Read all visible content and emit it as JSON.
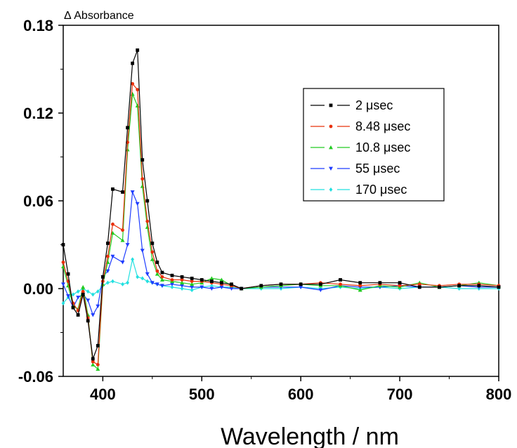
{
  "chart_data": {
    "type": "line",
    "xlabel": "Wavelength / nm",
    "ylabel": "Δ Absorbance",
    "xlim": [
      360,
      800
    ],
    "ylim": [
      -0.06,
      0.18
    ],
    "xticks": [
      400,
      500,
      600,
      700,
      800
    ],
    "xtick_labels": [
      "400",
      "500",
      "600",
      "700",
      "800"
    ],
    "yticks": [
      -0.06,
      0.0,
      0.06,
      0.12,
      0.18
    ],
    "ytick_labels": [
      "-0.06",
      "0.00",
      "0.06",
      "0.12",
      "0.18"
    ],
    "grid": false,
    "legend_position": "top-right",
    "series": [
      {
        "name": "2 μsec",
        "color": "#000000",
        "marker": "square",
        "x": [
          360,
          365,
          370,
          375,
          380,
          385,
          390,
          395,
          400,
          405,
          410,
          420,
          425,
          430,
          435,
          440,
          445,
          450,
          455,
          460,
          470,
          480,
          490,
          500,
          510,
          520,
          530,
          540,
          560,
          580,
          600,
          620,
          640,
          660,
          680,
          700,
          720,
          740,
          760,
          780,
          800
        ],
        "y": [
          0.03,
          0.01,
          -0.013,
          -0.018,
          -0.004,
          -0.022,
          -0.048,
          -0.039,
          0.008,
          0.031,
          0.068,
          0.066,
          0.11,
          0.154,
          0.163,
          0.088,
          0.06,
          0.031,
          0.018,
          0.011,
          0.009,
          0.008,
          0.007,
          0.006,
          0.005,
          0.004,
          0.003,
          0.0,
          0.002,
          0.003,
          0.003,
          0.003,
          0.006,
          0.004,
          0.004,
          0.004,
          0.001,
          0.001,
          0.002,
          0.002,
          0.001
        ]
      },
      {
        "name": "8.48 μsec",
        "color": "#e8300a",
        "marker": "circle",
        "x": [
          360,
          365,
          370,
          375,
          380,
          385,
          390,
          395,
          400,
          405,
          410,
          420,
          425,
          430,
          435,
          440,
          445,
          450,
          455,
          460,
          470,
          480,
          490,
          500,
          510,
          520,
          530,
          540,
          560,
          580,
          600,
          620,
          640,
          660,
          680,
          700,
          720,
          740,
          760,
          780,
          800
        ],
        "y": [
          0.018,
          0.005,
          -0.01,
          -0.015,
          -0.002,
          -0.02,
          -0.05,
          -0.052,
          0.005,
          0.022,
          0.044,
          0.04,
          0.1,
          0.14,
          0.136,
          0.075,
          0.046,
          0.025,
          0.012,
          0.008,
          0.006,
          0.006,
          0.005,
          0.005,
          0.004,
          0.003,
          0.002,
          0.0,
          0.002,
          0.003,
          0.003,
          0.004,
          0.003,
          0.002,
          0.003,
          0.002,
          0.003,
          0.002,
          0.003,
          0.003,
          0.002
        ]
      },
      {
        "name": "10.8 μsec",
        "color": "#22cc22",
        "marker": "triangle-up",
        "x": [
          360,
          365,
          370,
          375,
          380,
          385,
          390,
          395,
          400,
          405,
          410,
          420,
          425,
          430,
          435,
          440,
          445,
          450,
          455,
          460,
          470,
          480,
          490,
          500,
          510,
          520,
          530,
          540,
          560,
          580,
          600,
          620,
          640,
          660,
          680,
          700,
          720,
          740,
          760,
          780,
          800
        ],
        "y": [
          0.015,
          0.002,
          -0.012,
          -0.014,
          0.001,
          -0.018,
          -0.052,
          -0.055,
          0.003,
          0.018,
          0.038,
          0.033,
          0.095,
          0.133,
          0.125,
          0.07,
          0.042,
          0.02,
          0.01,
          0.006,
          0.005,
          0.004,
          0.003,
          0.004,
          0.007,
          0.006,
          0.002,
          0.0,
          0.001,
          0.002,
          0.003,
          0.002,
          0.002,
          -0.001,
          0.002,
          0.001,
          0.004,
          0.001,
          0.002,
          0.004,
          0.002
        ]
      },
      {
        "name": "55 μsec",
        "color": "#1e3cff",
        "marker": "triangle-down",
        "x": [
          360,
          365,
          370,
          375,
          380,
          385,
          390,
          395,
          400,
          405,
          410,
          420,
          425,
          430,
          435,
          440,
          445,
          450,
          455,
          460,
          470,
          480,
          490,
          500,
          510,
          520,
          530,
          540,
          560,
          580,
          600,
          620,
          640,
          660,
          680,
          700,
          720,
          740,
          760,
          780,
          800
        ],
        "y": [
          0.003,
          -0.005,
          -0.013,
          -0.006,
          -0.004,
          -0.008,
          -0.018,
          -0.012,
          0.008,
          0.012,
          0.022,
          0.018,
          0.03,
          0.066,
          0.058,
          0.026,
          0.01,
          0.004,
          0.003,
          0.002,
          0.003,
          0.002,
          0.001,
          0.001,
          0.0,
          0.001,
          0.0,
          0.0,
          0.001,
          0.001,
          0.001,
          -0.001,
          0.002,
          0.001,
          0.001,
          0.002,
          0.001,
          0.001,
          0.002,
          0.001,
          0.001
        ]
      },
      {
        "name": "170 μsec",
        "color": "#22e0e0",
        "marker": "diamond",
        "x": [
          360,
          365,
          370,
          375,
          380,
          385,
          390,
          395,
          400,
          405,
          410,
          420,
          425,
          430,
          435,
          440,
          445,
          450,
          455,
          460,
          470,
          480,
          490,
          500,
          510,
          520,
          530,
          540,
          560,
          580,
          600,
          620,
          640,
          660,
          680,
          700,
          720,
          740,
          760,
          780,
          800
        ],
        "y": [
          -0.01,
          -0.006,
          -0.004,
          -0.002,
          0.0,
          -0.002,
          -0.004,
          -0.002,
          0.002,
          0.004,
          0.005,
          0.003,
          0.004,
          0.02,
          0.008,
          0.007,
          0.005,
          0.004,
          0.003,
          0.002,
          0.001,
          0.0,
          -0.001,
          0.001,
          0.002,
          0.001,
          0.001,
          0.0,
          0.0,
          0.0,
          0.001,
          0.0,
          0.001,
          0.0,
          0.001,
          0.0,
          0.001,
          0.001,
          0.0,
          0.0,
          0.0
        ]
      }
    ]
  }
}
